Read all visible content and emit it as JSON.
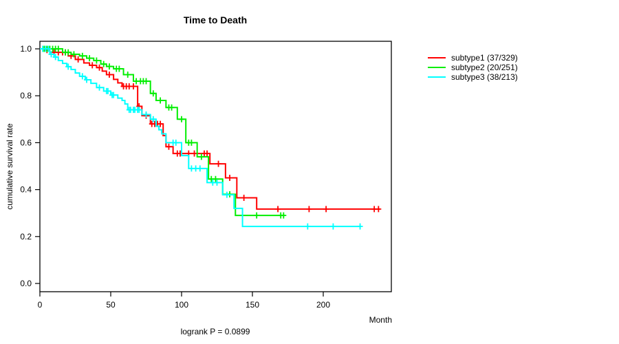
{
  "title": "Time to Death",
  "footer": "logrank P = 0.0899",
  "axes": {
    "x_label": "Month",
    "y_label": "cumulative survival rate"
  },
  "legend": [
    {
      "label": "subtype1 (37/329)",
      "color": "#FF0000"
    },
    {
      "label": "subtype2 (20/251)",
      "color": "#00EE00"
    },
    {
      "label": "subtype3 (38/213)",
      "color": "#00FFFF"
    }
  ],
  "chart_data": {
    "type": "line",
    "subtype": "kaplan-meier-step",
    "title": "Time to Death",
    "xlabel": "Month",
    "ylabel": "cumulative survival rate",
    "footnote": "logrank P = 0.0899",
    "xlim": [
      0,
      248
    ],
    "ylim": [
      0,
      1.0
    ],
    "grid": false,
    "legend_position": "right-outside",
    "x_ticks": {
      "values": [
        0,
        50,
        100,
        150,
        200
      ],
      "labels": [
        "0",
        "50",
        "100",
        "150",
        "200"
      ]
    },
    "y_ticks": {
      "values": [
        0,
        0.2,
        0.4,
        0.6,
        0.8,
        1.0
      ],
      "labels": [
        "0.0",
        "0.2",
        "0.4",
        "0.6",
        "0.8",
        "1.0"
      ]
    },
    "series": [
      {
        "name": "subtype1 (37/329)",
        "color": "#FF0000",
        "end_month": 240,
        "steps": [
          [
            0,
            1.0
          ],
          [
            4,
            0.995
          ],
          [
            7,
            0.985
          ],
          [
            20,
            0.97
          ],
          [
            25,
            0.955
          ],
          [
            31,
            0.94
          ],
          [
            35,
            0.93
          ],
          [
            40,
            0.92
          ],
          [
            44,
            0.905
          ],
          [
            47,
            0.89
          ],
          [
            52,
            0.87
          ],
          [
            55,
            0.855
          ],
          [
            58,
            0.84
          ],
          [
            69,
            0.755
          ],
          [
            72,
            0.715
          ],
          [
            78,
            0.68
          ],
          [
            87,
            0.63
          ],
          [
            89,
            0.583
          ],
          [
            94,
            0.554
          ],
          [
            120,
            0.51
          ],
          [
            131,
            0.45
          ],
          [
            139,
            0.365
          ],
          [
            153,
            0.317
          ]
        ],
        "censors": [
          [
            5,
            0.995
          ],
          [
            10,
            0.985
          ],
          [
            13,
            0.985
          ],
          [
            16,
            0.985
          ],
          [
            18,
            0.985
          ],
          [
            22,
            0.97
          ],
          [
            27,
            0.955
          ],
          [
            37,
            0.93
          ],
          [
            42,
            0.92
          ],
          [
            49,
            0.89
          ],
          [
            59,
            0.84
          ],
          [
            61,
            0.84
          ],
          [
            63,
            0.84
          ],
          [
            66,
            0.84
          ],
          [
            70,
            0.755
          ],
          [
            75,
            0.715
          ],
          [
            79,
            0.68
          ],
          [
            81,
            0.68
          ],
          [
            83,
            0.68
          ],
          [
            85,
            0.68
          ],
          [
            91,
            0.583
          ],
          [
            97,
            0.554
          ],
          [
            99,
            0.554
          ],
          [
            105,
            0.554
          ],
          [
            109,
            0.554
          ],
          [
            116,
            0.554
          ],
          [
            118,
            0.554
          ],
          [
            126,
            0.51
          ],
          [
            134,
            0.45
          ],
          [
            144,
            0.365
          ],
          [
            168,
            0.317
          ],
          [
            190,
            0.317
          ],
          [
            202,
            0.317
          ],
          [
            236,
            0.317
          ],
          [
            239,
            0.317
          ]
        ]
      },
      {
        "name": "subtype2 (20/251)",
        "color": "#00EE00",
        "end_month": 173,
        "steps": [
          [
            0,
            1.0
          ],
          [
            16,
            0.985
          ],
          [
            22,
            0.977
          ],
          [
            28,
            0.97
          ],
          [
            33,
            0.96
          ],
          [
            38,
            0.95
          ],
          [
            43,
            0.935
          ],
          [
            47,
            0.925
          ],
          [
            52,
            0.915
          ],
          [
            59,
            0.89
          ],
          [
            66,
            0.862
          ],
          [
            78,
            0.81
          ],
          [
            82,
            0.78
          ],
          [
            89,
            0.75
          ],
          [
            97,
            0.7
          ],
          [
            103,
            0.6
          ],
          [
            111,
            0.54
          ],
          [
            119,
            0.445
          ],
          [
            129,
            0.38
          ],
          [
            138,
            0.29
          ]
        ],
        "censors": [
          [
            3,
            1.0
          ],
          [
            5,
            1.0
          ],
          [
            7,
            1.0
          ],
          [
            9,
            1.0
          ],
          [
            11,
            1.0
          ],
          [
            13,
            1.0
          ],
          [
            18,
            0.985
          ],
          [
            20,
            0.985
          ],
          [
            24,
            0.977
          ],
          [
            30,
            0.97
          ],
          [
            35,
            0.96
          ],
          [
            40,
            0.95
          ],
          [
            45,
            0.935
          ],
          [
            49,
            0.925
          ],
          [
            54,
            0.915
          ],
          [
            56,
            0.915
          ],
          [
            62,
            0.89
          ],
          [
            68,
            0.862
          ],
          [
            71,
            0.862
          ],
          [
            73,
            0.862
          ],
          [
            75,
            0.862
          ],
          [
            80,
            0.81
          ],
          [
            85,
            0.78
          ],
          [
            91,
            0.75
          ],
          [
            93,
            0.75
          ],
          [
            100,
            0.7
          ],
          [
            105,
            0.6
          ],
          [
            107,
            0.6
          ],
          [
            114,
            0.54
          ],
          [
            121,
            0.445
          ],
          [
            124,
            0.445
          ],
          [
            134,
            0.38
          ],
          [
            153,
            0.29
          ],
          [
            170,
            0.29
          ],
          [
            172,
            0.29
          ]
        ]
      },
      {
        "name": "subtype3 (38/213)",
        "color": "#00FFFF",
        "end_month": 226,
        "steps": [
          [
            0,
            1.0
          ],
          [
            7,
            0.977
          ],
          [
            10,
            0.965
          ],
          [
            13,
            0.95
          ],
          [
            16,
            0.938
          ],
          [
            19,
            0.924
          ],
          [
            22,
            0.912
          ],
          [
            25,
            0.897
          ],
          [
            28,
            0.883
          ],
          [
            32,
            0.868
          ],
          [
            36,
            0.853
          ],
          [
            40,
            0.835
          ],
          [
            45,
            0.82
          ],
          [
            50,
            0.803
          ],
          [
            55,
            0.79
          ],
          [
            58,
            0.78
          ],
          [
            60,
            0.765
          ],
          [
            62,
            0.74
          ],
          [
            72,
            0.72
          ],
          [
            78,
            0.7
          ],
          [
            82,
            0.67
          ],
          [
            84,
            0.655
          ],
          [
            86,
            0.638
          ],
          [
            89,
            0.6
          ],
          [
            100,
            0.545
          ],
          [
            105,
            0.49
          ],
          [
            118,
            0.43
          ],
          [
            129,
            0.378
          ],
          [
            137,
            0.32
          ],
          [
            143,
            0.243
          ]
        ],
        "censors": [
          [
            2,
            1.0
          ],
          [
            4,
            1.0
          ],
          [
            6,
            1.0
          ],
          [
            8,
            0.977
          ],
          [
            11,
            0.965
          ],
          [
            20,
            0.924
          ],
          [
            30,
            0.883
          ],
          [
            33,
            0.868
          ],
          [
            42,
            0.835
          ],
          [
            47,
            0.82
          ],
          [
            48,
            0.82
          ],
          [
            51,
            0.803
          ],
          [
            52,
            0.803
          ],
          [
            63,
            0.74
          ],
          [
            64,
            0.74
          ],
          [
            66,
            0.74
          ],
          [
            67,
            0.74
          ],
          [
            69,
            0.74
          ],
          [
            70,
            0.74
          ],
          [
            75,
            0.72
          ],
          [
            80,
            0.7
          ],
          [
            94,
            0.6
          ],
          [
            96,
            0.6
          ],
          [
            107,
            0.49
          ],
          [
            110,
            0.49
          ],
          [
            113,
            0.49
          ],
          [
            122,
            0.43
          ],
          [
            125,
            0.43
          ],
          [
            132,
            0.378
          ],
          [
            189,
            0.243
          ],
          [
            207,
            0.243
          ],
          [
            226,
            0.243
          ]
        ]
      }
    ]
  }
}
